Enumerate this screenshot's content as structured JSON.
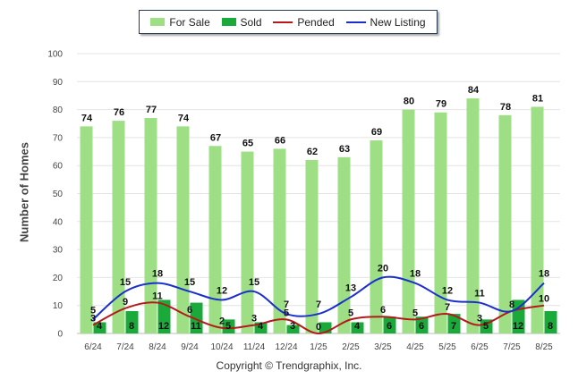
{
  "chart_data": {
    "type": "bar",
    "title": "",
    "xlabel": "",
    "ylabel": "Number of Homes",
    "ylim": [
      0,
      100
    ],
    "yticks": [
      0,
      10,
      20,
      30,
      40,
      50,
      60,
      70,
      80,
      90,
      100
    ],
    "grid": true,
    "legend_position": "top",
    "categories": [
      "6/24",
      "7/24",
      "8/24",
      "9/24",
      "10/24",
      "11/24",
      "12/24",
      "1/25",
      "2/25",
      "3/25",
      "4/25",
      "5/25",
      "6/25",
      "7/25",
      "8/25"
    ],
    "series": [
      {
        "name": "For Sale",
        "kind": "bar",
        "color": "#9edf86",
        "values": [
          74,
          76,
          77,
          74,
          67,
          65,
          66,
          62,
          63,
          69,
          80,
          79,
          84,
          78,
          81
        ]
      },
      {
        "name": "Sold",
        "kind": "bar",
        "color": "#1aaa3a",
        "values": [
          4,
          8,
          12,
          11,
          5,
          4,
          3,
          4,
          4,
          6,
          6,
          7,
          5,
          12,
          8
        ]
      },
      {
        "name": "Pended",
        "kind": "line",
        "color": "#b31b1b",
        "values": [
          3,
          9,
          11,
          6,
          2,
          3,
          5,
          0,
          5,
          6,
          5,
          7,
          3,
          8,
          10
        ]
      },
      {
        "name": "New Listing",
        "kind": "line",
        "color": "#1b2fcc",
        "values": [
          5,
          15,
          18,
          15,
          12,
          15,
          7,
          7,
          13,
          20,
          18,
          12,
          11,
          8,
          18
        ]
      }
    ],
    "labels": {
      "for_sale": [
        "74",
        "76",
        "77",
        "74",
        "67",
        "65",
        "66",
        "62",
        "63",
        "69",
        "80",
        "79",
        "84",
        "78",
        "81"
      ],
      "sold": [
        "4",
        "8",
        "12",
        "11",
        "5",
        "4",
        "3",
        "",
        "4",
        "6",
        "6",
        "7",
        "5",
        "12",
        "8"
      ],
      "pended": [
        "3",
        "9",
        "11",
        "6",
        "2",
        "3",
        "5",
        "0",
        "5",
        "6",
        "5",
        "7",
        "3",
        "8",
        "10"
      ],
      "new_listing": [
        "5",
        "15",
        "18",
        "15",
        "12",
        "15",
        "7",
        "7",
        "13",
        "20",
        "18",
        "12",
        "11",
        "",
        "18"
      ]
    }
  },
  "legend": {
    "for_sale": "For Sale",
    "sold": "Sold",
    "pended": "Pended",
    "new_listing": "New Listing"
  },
  "copyright": "Copyright © Trendgraphix, Inc."
}
